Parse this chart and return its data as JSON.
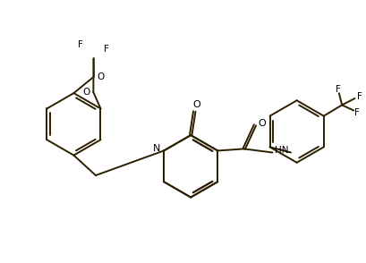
{
  "bg_color": "#ffffff",
  "bond_color": "#2d2000",
  "figsize": [
    4.1,
    2.94
  ],
  "dpi": 100,
  "lw": 1.4,
  "xlim": [
    0,
    10
  ],
  "ylim": [
    0,
    7
  ]
}
